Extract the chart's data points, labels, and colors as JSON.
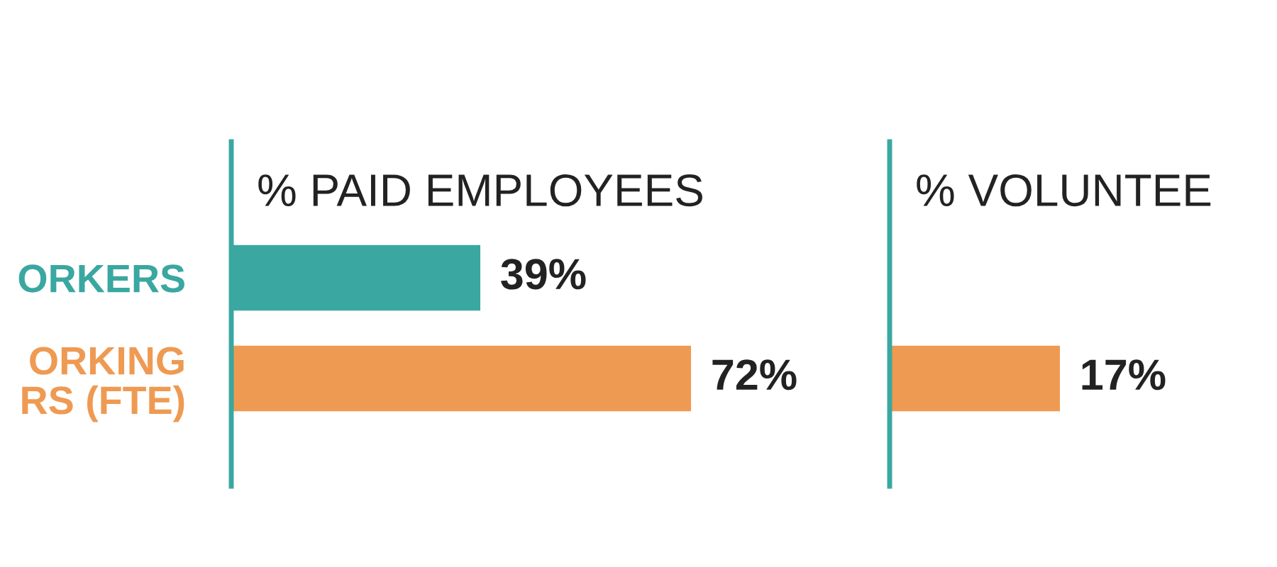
{
  "chart_data": [
    {
      "type": "bar",
      "orientation": "horizontal",
      "title": "% PAID EMPLOYEES",
      "categories": [
        "ORKERS",
        "ORKING\nRS (FTE)"
      ],
      "values": [
        39,
        72
      ],
      "colors": [
        "#3aa7a1",
        "#ef9a52"
      ],
      "value_labels": [
        "39%",
        "72%"
      ],
      "tick_labels": "y",
      "grid": false,
      "legend": false
    },
    {
      "type": "bar",
      "orientation": "horizontal",
      "title": "% VOLUNTEE",
      "categories": [
        null,
        null
      ],
      "values": [
        null,
        17
      ],
      "colors": [
        "#3aa7a1",
        "#ef9a52"
      ],
      "value_labels": [
        null,
        "17%"
      ],
      "tick_labels": false,
      "grid": false,
      "legend": false
    }
  ]
}
